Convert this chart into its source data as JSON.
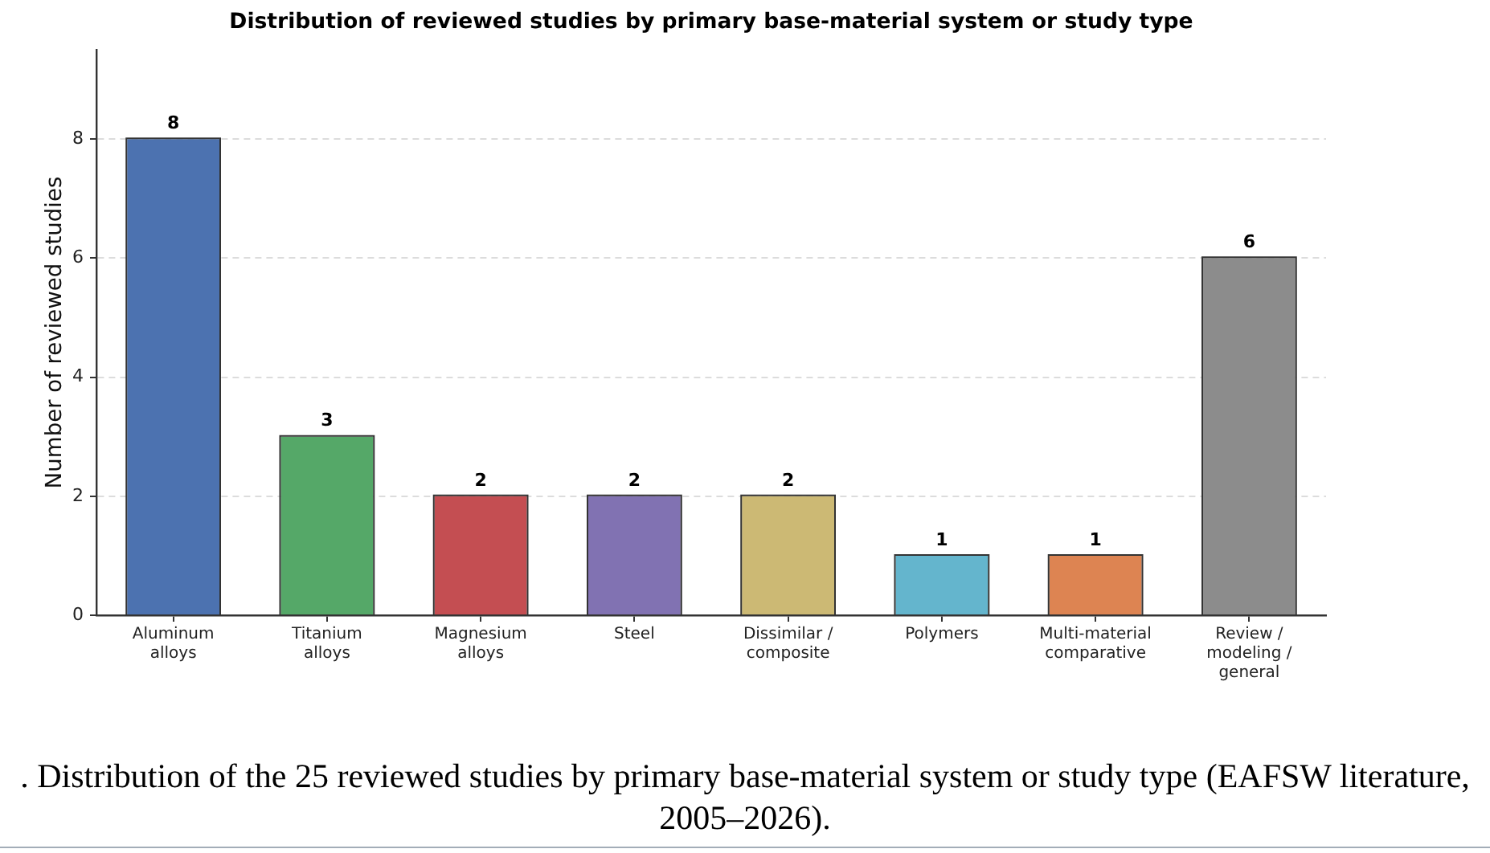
{
  "chart_data": {
    "type": "bar",
    "title": "Distribution of reviewed studies by primary base-material system or study type",
    "ylabel": "Number of reviewed studies",
    "categories": [
      "Aluminum alloys",
      "Titanium alloys",
      "Magnesium alloys",
      "Steel",
      "Dissimilar / composite",
      "Polymers",
      "Multi-material comparative",
      "Review / modeling / general"
    ],
    "values": [
      8,
      3,
      2,
      2,
      2,
      1,
      1,
      6
    ],
    "colors": [
      "#4c72b0",
      "#55a868",
      "#c44e52",
      "#8172b2",
      "#ccb974",
      "#64b5cd",
      "#dd8452",
      "#8c8c8c"
    ],
    "ylim": [
      0,
      9.5
    ],
    "yticks": [
      0,
      2,
      4,
      6,
      8
    ],
    "grid": "y",
    "data_labels": true,
    "annotations": [
      ". Distribution of the 25 reviewed studies by primary base-material system or study type (EAFSW literature, 2005–2026)."
    ]
  }
}
